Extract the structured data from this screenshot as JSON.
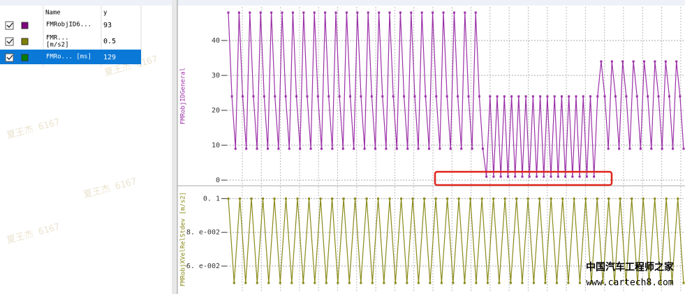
{
  "signal_table": {
    "headers": [
      "Name",
      "y"
    ],
    "rows": [
      {
        "name": "FMRobjID6...",
        "unit": null,
        "value": 93,
        "color": "#800080"
      },
      {
        "name": "FMR...",
        "unit": "[m/s2]",
        "value": 0.5,
        "color": "#808000"
      },
      {
        "name": "FMRo...  [ms]",
        "unit": null,
        "value": 129,
        "color": "#008000"
      }
    ]
  },
  "chart_data": [
    {
      "type": "line",
      "y_label": "FMRobjIDGeneral",
      "color": "#9b30a8",
      "ylim": [
        -1.4,
        49.6
      ],
      "yticks": [
        0,
        10,
        20,
        30,
        40
      ],
      "grid": true,
      "values": [
        48,
        24,
        9,
        48,
        24,
        9,
        48,
        24,
        9,
        48,
        24,
        9,
        48,
        24,
        9,
        48,
        24,
        9,
        48,
        24,
        9,
        48,
        24,
        9,
        48,
        24,
        9,
        48,
        24,
        9,
        48,
        24,
        9,
        48,
        24,
        9,
        48,
        24,
        9,
        48,
        24,
        9,
        48,
        24,
        9,
        48,
        24,
        9,
        48,
        24,
        9,
        48,
        24,
        9,
        48,
        24,
        9,
        48,
        24,
        9,
        48,
        24,
        9,
        48,
        24,
        9,
        48,
        24,
        9,
        48,
        24,
        9,
        1,
        24,
        1,
        24,
        1,
        24,
        1,
        24,
        1,
        24,
        1,
        24,
        1,
        24,
        1,
        24,
        1,
        24,
        1,
        24,
        1,
        24,
        1,
        24,
        1,
        24,
        1,
        24,
        1,
        24,
        1,
        24,
        34,
        24,
        9,
        34,
        24,
        9,
        34,
        24,
        9,
        34,
        24,
        9,
        34,
        24,
        9,
        34,
        24,
        9,
        34,
        24,
        9,
        34,
        24,
        9
      ]
    },
    {
      "type": "line",
      "y_label": "FMRobjXVelRelStdev [m/s2]",
      "color": "#8a8a1a",
      "ylim": [
        0.0447,
        0.1072
      ],
      "yticks": [
        {
          "value": 0.1,
          "label": "0. 1"
        },
        {
          "value": 0.08,
          "label": "8. e-002"
        },
        {
          "value": 0.06,
          "label": "6. e-002"
        }
      ],
      "grid": true,
      "values": [
        0.1,
        0.05,
        0.1,
        0.05,
        0.1,
        0.05,
        0.1,
        0.05,
        0.1,
        0.05,
        0.1,
        0.05,
        0.1,
        0.05,
        0.1,
        0.05,
        0.1,
        0.05,
        0.1,
        0.05,
        0.1,
        0.05,
        0.1,
        0.05,
        0.1,
        0.05,
        0.1,
        0.05,
        0.1,
        0.05,
        0.1,
        0.05,
        0.1,
        0.05,
        0.1,
        0.05,
        0.1,
        0.05,
        0.1,
        0.05,
        0.1,
        0.05,
        0.1,
        0.05,
        0.1,
        0.05,
        0.1,
        0.05,
        0.1,
        0.05,
        0.1,
        0.05,
        0.1,
        0.05,
        0.1,
        0.05,
        0.1,
        0.05,
        0.1,
        0.05,
        0.1,
        0.05,
        0.1,
        0.05,
        0.1,
        0.05,
        0.1,
        0.05,
        0.1,
        0.05,
        0.1,
        0.05,
        0.1,
        0.05,
        0.1,
        0.05,
        0.1,
        0.05,
        0.1,
        0.05
      ]
    }
  ],
  "watermark": {
    "user": "夏王杰 6167",
    "site_cn": "中国汽车工程师之家",
    "site_url": "www.cartech8.com"
  }
}
